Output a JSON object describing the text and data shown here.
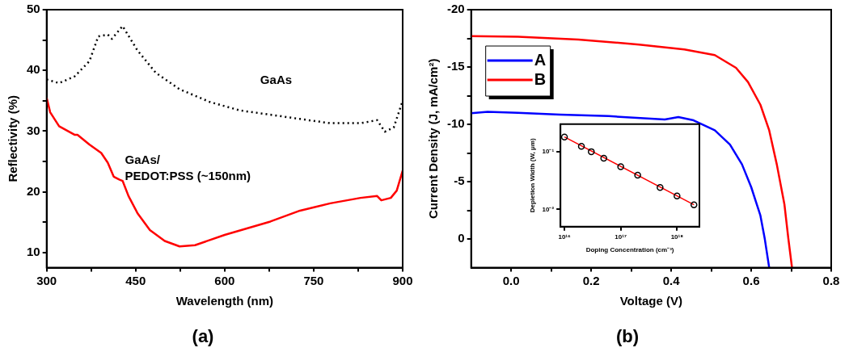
{
  "chart_data": [
    {
      "type": "line",
      "title": "(a)",
      "xlabel": "Wavelength (nm)",
      "ylabel": "Reflectivity (%)",
      "xlim": [
        300,
        900
      ],
      "xticks": [
        300,
        {
          "value": 375,
          "label": null
        },
        450,
        {
          "value": 525,
          "label": null
        },
        600,
        {
          "value": 675,
          "label": null
        },
        750,
        {
          "value": 825,
          "label": null
        },
        900
      ],
      "ylim": [
        7.5,
        50
      ],
      "yticks": [
        10,
        {
          "value": 15,
          "label": null
        },
        20,
        {
          "value": 25,
          "label": null
        },
        30,
        {
          "value": 35,
          "label": null
        },
        40,
        {
          "value": 45,
          "label": null
        },
        50
      ],
      "grid": false,
      "series": [
        {
          "name": "GaAs",
          "color": "#000000",
          "line_style": "dotted",
          "x": [
            300,
            321,
            347,
            372,
            387,
            403,
            410,
            428,
            453,
            484,
            524,
            575,
            626,
            677,
            727,
            778,
            829,
            857,
            870,
            885,
            900
          ],
          "values": [
            38.5,
            37.9,
            39.0,
            41.5,
            45.6,
            45.9,
            45.2,
            47.3,
            43.3,
            39.6,
            36.9,
            34.8,
            33.4,
            32.7,
            32.0,
            31.3,
            31.3,
            31.8,
            29.9,
            30.6,
            35.0
          ]
        },
        {
          "name": "GaAs/\nPEDOT:PSS (~150nm)",
          "color": "#ff0000",
          "line_style": "solid",
          "x": [
            300,
            306,
            321,
            347,
            352,
            372,
            392,
            403,
            413,
            423,
            428,
            438,
            453,
            474,
            499,
            524,
            550,
            600,
            677,
            727,
            778,
            829,
            857,
            864,
            880,
            890,
            900
          ],
          "values": [
            35.5,
            33.1,
            30.8,
            29.4,
            29.4,
            27.8,
            26.4,
            24.8,
            22.5,
            22.0,
            21.8,
            19.3,
            16.5,
            13.7,
            11.9,
            11.0,
            11.2,
            12.9,
            15.1,
            16.9,
            18.1,
            19.0,
            19.3,
            18.6,
            19.0,
            20.2,
            23.5
          ]
        }
      ]
    },
    {
      "type": "line",
      "title": "(b)",
      "xlabel": "Voltage (V)",
      "ylabel": "Current Density (J, mA/cm²)",
      "xlim": [
        -0.1,
        0.8
      ],
      "xticks": [
        {
          "value": 0,
          "label": "0.0"
        },
        {
          "value": 0.1,
          "label": null
        },
        0.2,
        {
          "value": 0.3,
          "label": null
        },
        0.4,
        {
          "value": 0.5,
          "label": null
        },
        0.6,
        {
          "value": 0.7,
          "label": null
        },
        0.8
      ],
      "ylim": [
        2.5,
        -20
      ],
      "yticks": [
        0,
        {
          "value": -2.5,
          "label": null
        },
        -5,
        {
          "value": -7.5,
          "label": null
        },
        -10,
        {
          "value": -12.5,
          "label": null
        },
        -15,
        {
          "value": -17.5,
          "label": null
        },
        -20
      ],
      "grid": false,
      "legend": "top left",
      "series": [
        {
          "name": "A",
          "color": "#0000ff",
          "x": [
            -0.1,
            -0.059,
            0.017,
            0.123,
            0.244,
            0.384,
            0.418,
            0.456,
            0.509,
            0.547,
            0.577,
            0.6,
            0.623,
            0.634,
            0.645
          ],
          "values": [
            -10.97,
            -11.09,
            -11.01,
            -10.84,
            -10.72,
            -10.42,
            -10.64,
            -10.35,
            -9.48,
            -8.24,
            -6.51,
            -4.53,
            -2.05,
            0,
            2.5
          ]
        },
        {
          "name": "B",
          "color": "#ff0000",
          "x": [
            -0.1,
            0.017,
            0.168,
            0.32,
            0.433,
            0.509,
            0.562,
            0.592,
            0.623,
            0.645,
            0.664,
            0.683,
            0.693,
            0.702
          ],
          "values": [
            -17.7,
            -17.65,
            -17.4,
            -16.96,
            -16.53,
            -16.04,
            -14.93,
            -13.69,
            -11.71,
            -9.48,
            -6.51,
            -3.04,
            0,
            2.5
          ]
        }
      ]
    },
    {
      "type": "scatter",
      "xlabel": "Doping Concentration (cm⁻³)",
      "ylabel": "Depletion Width (W, μm)",
      "log": "xy",
      "xlim": [
        8500000000000000.0,
        2.5e+18
      ],
      "xticks": [
        {
          "value": 1e+16,
          "label": "10¹⁶"
        },
        {
          "value": 1e+17,
          "label": "10¹⁷"
        },
        {
          "value": 1e+18,
          "label": "10¹⁸"
        }
      ],
      "ylim": [
        0.005,
        0.3
      ],
      "yticks": [
        {
          "value": 0.01,
          "label": "10⁻²"
        },
        {
          "value": 0.1,
          "label": "10⁻¹"
        }
      ],
      "grid": false,
      "series": [
        {
          "type": "line",
          "color": "#ff0000",
          "x": [
            1e+16,
            2e+18
          ],
          "values": [
            0.18,
            0.012
          ]
        },
        {
          "type": "scatter",
          "marker": "circle",
          "color": "#000000",
          "x": [
            1e+16,
            2e+16,
            3e+16,
            5e+16,
            1e+17,
            2e+17,
            5e+17,
            1e+18,
            2e+18
          ],
          "values": [
            0.18,
            0.124,
            0.1,
            0.077,
            0.055,
            0.039,
            0.024,
            0.017,
            0.012
          ]
        }
      ]
    }
  ]
}
